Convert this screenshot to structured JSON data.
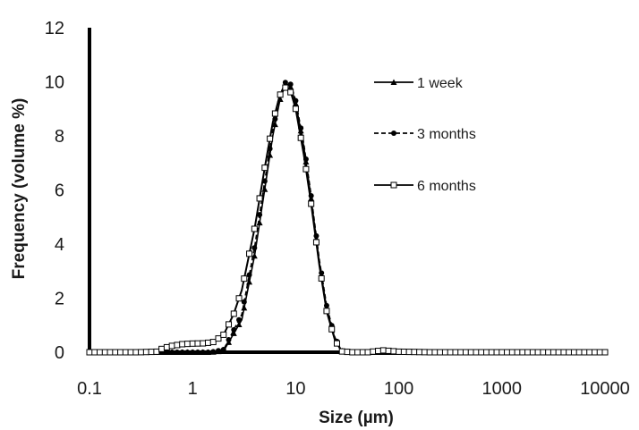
{
  "chart_data": {
    "type": "line",
    "xlabel": "Size (µm)",
    "ylabel": "Frequency (volume %)",
    "x_scale": "log",
    "xlim": [
      0.1,
      10000
    ],
    "ylim": [
      0,
      12
    ],
    "x_ticks": [
      "0.1",
      "1",
      "10",
      "100",
      "1000",
      "10000"
    ],
    "x_tick_values": [
      0.1,
      1,
      10,
      100,
      1000,
      10000
    ],
    "y_ticks": [
      "0",
      "2",
      "4",
      "6",
      "8",
      "10",
      "12"
    ],
    "y_tick_values": [
      0,
      2,
      4,
      6,
      8,
      10,
      12
    ],
    "grid": false,
    "legend_position": "top-right",
    "series": [
      {
        "name": "1 week",
        "marker": "triangle",
        "line_style": "solid",
        "color": "#000000",
        "x": [
          0.1,
          0.3,
          0.5,
          1.0,
          1.5,
          2.0,
          3.0,
          4.0,
          5.0,
          6.0,
          7.0,
          8.0,
          9.0,
          10.0,
          12.0,
          14.0,
          17.0,
          20.0,
          24.0,
          28.0,
          35.0,
          100,
          1000,
          10000
        ],
        "y": [
          0,
          0,
          0,
          0,
          0,
          0.05,
          1.2,
          3.6,
          6.0,
          8.0,
          9.3,
          9.95,
          9.8,
          9.2,
          7.6,
          5.8,
          3.3,
          1.6,
          0.5,
          0.05,
          0,
          0,
          0,
          0
        ]
      },
      {
        "name": "3 months",
        "marker": "circle",
        "line_style": "dashed",
        "color": "#000000",
        "x": [
          0.1,
          0.3,
          0.5,
          1.0,
          1.5,
          2.0,
          3.0,
          4.0,
          5.0,
          6.0,
          7.0,
          8.0,
          9.0,
          10.0,
          12.0,
          14.0,
          17.0,
          20.0,
          24.0,
          28.0,
          35.0,
          100,
          1000,
          10000
        ],
        "y": [
          0,
          0,
          0,
          0,
          0,
          0.1,
          1.4,
          3.9,
          6.3,
          8.2,
          9.5,
          10.0,
          9.9,
          9.3,
          7.7,
          5.9,
          3.4,
          1.7,
          0.55,
          0.05,
          0,
          0,
          0,
          0
        ]
      },
      {
        "name": "6 months",
        "marker": "square",
        "line_style": "solid",
        "color": "#000000",
        "x": [
          0.1,
          0.3,
          0.45,
          0.5,
          0.6,
          0.8,
          1.0,
          1.3,
          1.6,
          2.0,
          2.5,
          3.0,
          4.0,
          5.0,
          6.0,
          7.0,
          8.0,
          9.0,
          10.0,
          12.0,
          14.0,
          17.0,
          20.0,
          24.0,
          28.0,
          35.0,
          50.0,
          70.0,
          100,
          200,
          1000,
          10000
        ],
        "y": [
          0,
          0,
          0.02,
          0.12,
          0.22,
          0.3,
          0.32,
          0.33,
          0.38,
          0.65,
          1.4,
          2.3,
          4.6,
          6.8,
          8.5,
          9.5,
          9.8,
          9.6,
          9.0,
          7.3,
          5.6,
          3.2,
          1.5,
          0.45,
          0.03,
          0,
          0,
          0.07,
          0.02,
          0,
          0,
          0
        ]
      }
    ]
  }
}
